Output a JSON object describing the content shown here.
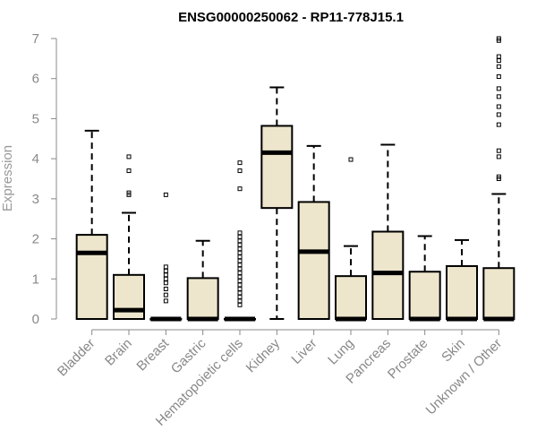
{
  "chart_data": {
    "type": "boxplot",
    "title": "ENSG00000250062 - RP11-778J15.1",
    "xlabel": "",
    "ylabel": "Expression",
    "ylim": [
      0,
      7
    ],
    "yticks": [
      0,
      1,
      2,
      3,
      4,
      5,
      6,
      7
    ],
    "categories": [
      "Bladder",
      "Brain",
      "Breast",
      "Gastric",
      "Hematopoietic cells",
      "Kidney",
      "Liver",
      "Lung",
      "Pancreas",
      "Prostate",
      "Skin",
      "Unknown / Other"
    ],
    "series": [
      {
        "category": "Bladder",
        "whisker_low": 0,
        "q1": 0,
        "median": 1.65,
        "q3": 2.1,
        "whisker_high": 4.7,
        "outliers": []
      },
      {
        "category": "Brain",
        "whisker_low": 0,
        "q1": 0,
        "median": 0.22,
        "q3": 1.1,
        "whisker_high": 2.65,
        "outliers": [
          3.1,
          3.15,
          3.7,
          4.05
        ]
      },
      {
        "category": "Breast",
        "whisker_low": 0,
        "q1": 0,
        "median": 0,
        "q3": 0,
        "whisker_high": 0,
        "outliers": [
          0.45,
          0.6,
          0.75,
          0.9,
          1.0,
          1.1,
          1.2,
          1.3,
          3.1
        ]
      },
      {
        "category": "Gastric",
        "whisker_low": 0,
        "q1": 0,
        "median": 0,
        "q3": 1.02,
        "whisker_high": 1.95,
        "outliers": []
      },
      {
        "category": "Hematopoietic cells",
        "whisker_low": 0,
        "q1": 0,
        "median": 0,
        "q3": 0,
        "whisker_high": 0,
        "outliers": [
          0.35,
          0.45,
          0.55,
          0.65,
          0.75,
          0.85,
          0.95,
          1.05,
          1.15,
          1.25,
          1.35,
          1.45,
          1.55,
          1.65,
          1.75,
          1.85,
          1.95,
          2.05,
          2.15,
          3.25,
          3.7,
          3.9
        ]
      },
      {
        "category": "Kidney",
        "whisker_low": 0,
        "q1": 2.77,
        "median": 4.15,
        "q3": 4.82,
        "whisker_high": 5.78,
        "outliers": []
      },
      {
        "category": "Liver",
        "whisker_low": 0,
        "q1": 0,
        "median": 1.68,
        "q3": 2.92,
        "whisker_high": 4.32,
        "outliers": []
      },
      {
        "category": "Lung",
        "whisker_low": 0,
        "q1": 0,
        "median": 0,
        "q3": 1.07,
        "whisker_high": 1.82,
        "outliers": [
          3.98
        ]
      },
      {
        "category": "Pancreas",
        "whisker_low": 0,
        "q1": 0,
        "median": 1.15,
        "q3": 2.18,
        "whisker_high": 4.35,
        "outliers": []
      },
      {
        "category": "Prostate",
        "whisker_low": 0,
        "q1": 0,
        "median": 0,
        "q3": 1.18,
        "whisker_high": 2.07,
        "outliers": []
      },
      {
        "category": "Skin",
        "whisker_low": 0,
        "q1": 0,
        "median": 0,
        "q3": 1.32,
        "whisker_high": 1.97,
        "outliers": []
      },
      {
        "category": "Unknown / Other",
        "whisker_low": 0,
        "q1": 0,
        "median": 0,
        "q3": 1.27,
        "whisker_high": 3.12,
        "outliers": [
          3.5,
          3.55,
          4.05,
          4.2,
          4.85,
          5.1,
          5.3,
          5.55,
          5.75,
          6.05,
          6.3,
          6.45,
          6.55,
          6.95,
          7.0
        ]
      }
    ],
    "colors": {
      "box_fill": "#ede6cc",
      "box_stroke": "#000000",
      "median": "#000000",
      "axis": "#888888"
    },
    "grid": false
  }
}
